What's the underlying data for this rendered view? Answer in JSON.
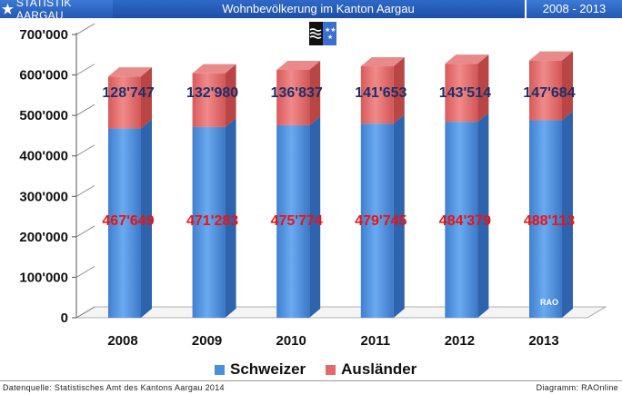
{
  "header": {
    "left_label": "STATISTIK AARGAU",
    "title": "Wohnbevölkerung im Kanton Aargau",
    "period": "2008 - 2013"
  },
  "footer": {
    "source": "Datenquelle: Statistisches Amt des Kantons Aargau 2014",
    "credit": "Diagramm: RAOnline"
  },
  "watermark": "RAO",
  "colors": {
    "schweizer": "#4a8fdc",
    "auslaender": "#e36a6a",
    "schweizer_label": "#ee1111",
    "auslaender_label": "#1c2f6b"
  },
  "chart_data": {
    "type": "bar",
    "stacked": true,
    "categories": [
      "2008",
      "2009",
      "2010",
      "2011",
      "2012",
      "2013"
    ],
    "series": [
      {
        "name": "Schweizer",
        "values": [
          467649,
          471283,
          475774,
          479745,
          484379,
          488113
        ],
        "labels": [
          "467'649",
          "471'283",
          "475'774",
          "479'745",
          "484'379",
          "488'113"
        ]
      },
      {
        "name": "Ausländer",
        "values": [
          128747,
          132980,
          136837,
          141653,
          143514,
          147684
        ],
        "labels": [
          "128'747",
          "132'980",
          "136'837",
          "141'653",
          "143'514",
          "147'684"
        ]
      }
    ],
    "ylim": [
      0,
      700000
    ],
    "yticks": [
      0,
      100000,
      200000,
      300000,
      400000,
      500000,
      600000,
      700000
    ],
    "ytick_labels": [
      "0",
      "100'000",
      "200'000",
      "300'000",
      "400'000",
      "500'000",
      "600'000",
      "700'000"
    ],
    "legend_position": "bottom",
    "grid": false
  }
}
